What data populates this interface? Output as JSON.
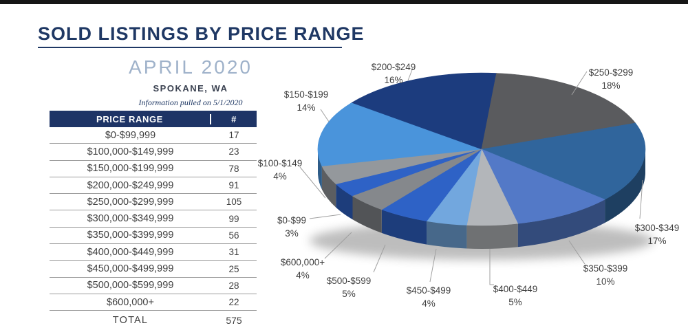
{
  "page": {
    "top_bar_color": "#161616",
    "background": "#FFFFFF"
  },
  "header": {
    "title": "SOLD LISTINGS BY PRICE RANGE",
    "subtitle": "APRIL 2020",
    "location": "SPOKANE, WA",
    "note": "Information pulled on 5/1/2020",
    "title_color": "#1F3864",
    "subtitle_color": "#9FB2CA"
  },
  "table": {
    "headers": [
      "PRICE RANGE",
      "#"
    ],
    "header_bg": "#1E3466",
    "header_text_color": "#FFFFFF",
    "rows": [
      {
        "range": "$0-$99,999",
        "count": 17
      },
      {
        "range": "$100,000-$149,999",
        "count": 23
      },
      {
        "range": "$150,000-$199,999",
        "count": 78
      },
      {
        "range": "$200,000-$249,999",
        "count": 91
      },
      {
        "range": "$250,000-$299,999",
        "count": 105
      },
      {
        "range": "$300,000-$349,999",
        "count": 99
      },
      {
        "range": "$350,000-$399,999",
        "count": 56
      },
      {
        "range": "$400,000-$449,999",
        "count": 31
      },
      {
        "range": "$450,000-$499,999",
        "count": 25
      },
      {
        "range": "$500,000-$599,999",
        "count": 28
      },
      {
        "range": "$600,000+",
        "count": 22
      }
    ],
    "total_label": "TOTAL",
    "total_value": 575
  },
  "chart_data": {
    "type": "pie",
    "style": "3d",
    "title": "",
    "legend_position": "none",
    "start_angle_deg": 232,
    "categories": [
      "$0-$99",
      "$100-$149",
      "$150-$199",
      "$200-$249",
      "$250-$299",
      "$300-$349",
      "$350-$399",
      "$400-$449",
      "$450-$499",
      "$500-$599",
      "$600,000+"
    ],
    "values": [
      17,
      23,
      78,
      91,
      105,
      99,
      56,
      31,
      25,
      28,
      22
    ],
    "percents": [
      3,
      4,
      14,
      16,
      18,
      17,
      10,
      5,
      4,
      5,
      4
    ],
    "percent_labels": [
      "3%",
      "4%",
      "14%",
      "16%",
      "18%",
      "17%",
      "10%",
      "5%",
      "4%",
      "5%",
      "4%"
    ],
    "colors": [
      "#2E62C6",
      "#94989C",
      "#4A94DB",
      "#1C3C7E",
      "#5A5B5E",
      "#30659C",
      "#5379C7",
      "#B3B6BA",
      "#72A7DE",
      "#2E62C6",
      "#85888C"
    ],
    "total": 575
  }
}
